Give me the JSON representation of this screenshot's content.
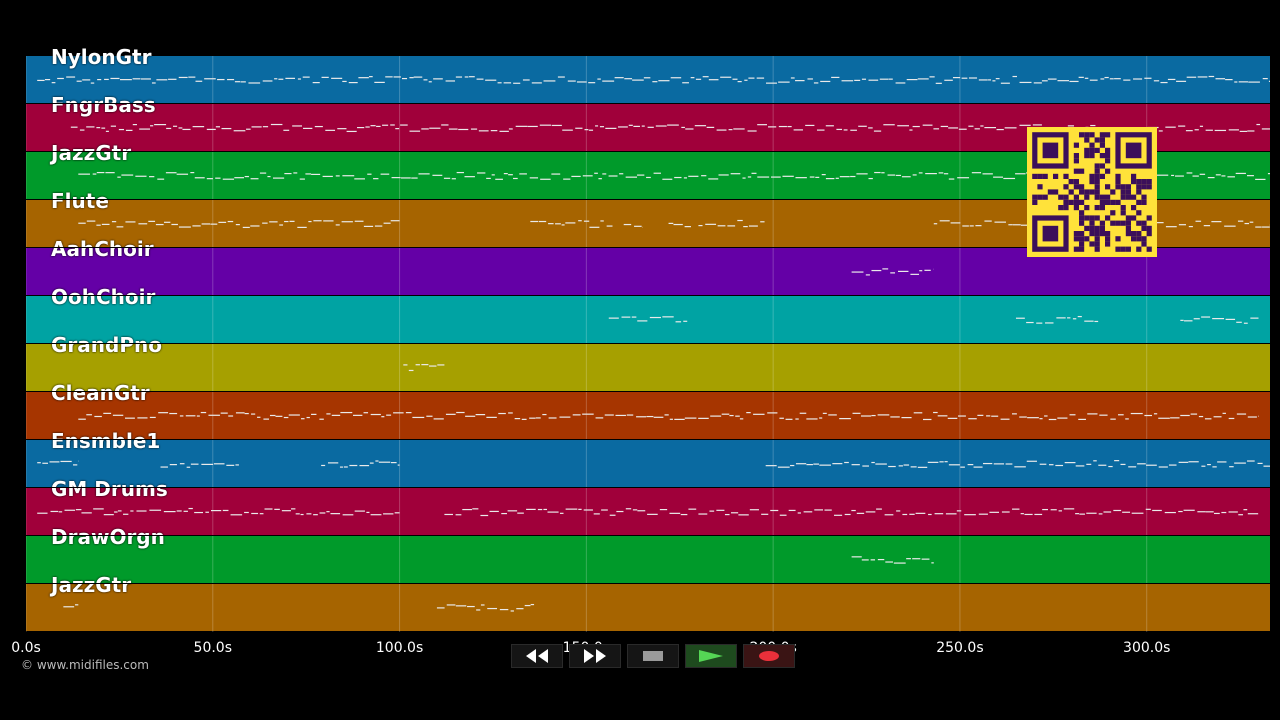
{
  "tracks": [
    {
      "name": "NylonGtr",
      "color": "#0a6aa1"
    },
    {
      "name": "FngrBass",
      "color": "#a0003a"
    },
    {
      "name": "JazzGtr",
      "color": "#009a2a"
    },
    {
      "name": "Flute",
      "color": "#a66400"
    },
    {
      "name": "AahChoir",
      "color": "#6400a6"
    },
    {
      "name": "OohChoir",
      "color": "#00a3a3"
    },
    {
      "name": "GrandPno",
      "color": "#a6a000"
    },
    {
      "name": "CleanGtr",
      "color": "#a63500"
    },
    {
      "name": "Ensmble1",
      "color": "#0a6aa1"
    },
    {
      "name": "GM Drums",
      "color": "#a0003a"
    },
    {
      "name": "DrawOrgn",
      "color": "#009a2a"
    },
    {
      "name": "JazzGtr",
      "color": "#a66400"
    }
  ],
  "timeline": {
    "ticks": [
      "0.0s",
      "50.0s",
      "100.0s",
      "150.0s",
      "200.0s",
      "250.0s",
      "300.0s"
    ],
    "tick_values": [
      0,
      50,
      100,
      150,
      200,
      250,
      300
    ],
    "max_time": 333
  },
  "note_segments": [
    {
      "track": 0,
      "ranges": [
        [
          3,
          333
        ]
      ]
    },
    {
      "track": 1,
      "ranges": [
        [
          12,
          333
        ]
      ]
    },
    {
      "track": 2,
      "ranges": [
        [
          14,
          333
        ]
      ]
    },
    {
      "track": 3,
      "ranges": [
        [
          14,
          100
        ],
        [
          135,
          157
        ],
        [
          160,
          165
        ],
        [
          172,
          178
        ],
        [
          180,
          198
        ],
        [
          243,
          333
        ]
      ]
    },
    {
      "track": 4,
      "ranges": [
        [
          221,
          243
        ]
      ]
    },
    {
      "track": 5,
      "ranges": [
        [
          156,
          177
        ],
        [
          265,
          287
        ],
        [
          309,
          330
        ]
      ]
    },
    {
      "track": 6,
      "ranges": [
        [
          101,
          112
        ]
      ]
    },
    {
      "track": 7,
      "ranges": [
        [
          14,
          330
        ]
      ]
    },
    {
      "track": 8,
      "ranges": [
        [
          3,
          14
        ],
        [
          36,
          57
        ],
        [
          79,
          100
        ],
        [
          198,
          333
        ]
      ]
    },
    {
      "track": 9,
      "ranges": [
        [
          3,
          100
        ],
        [
          112,
          330
        ]
      ]
    },
    {
      "track": 10,
      "ranges": [
        [
          221,
          243
        ]
      ]
    },
    {
      "track": 11,
      "ranges": [
        [
          10,
          14
        ],
        [
          110,
          136
        ]
      ]
    }
  ],
  "copyright": "© www.midifiles.com",
  "transport": {
    "rewind": "rewind-icon",
    "fast_forward": "fast-forward-icon",
    "stop": "stop-icon",
    "play": "play-icon",
    "record": "record-icon"
  }
}
